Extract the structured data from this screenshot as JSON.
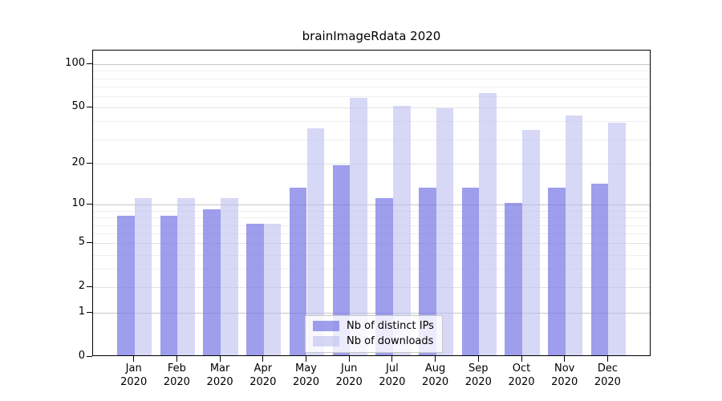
{
  "title": "brainImageRdata 2020",
  "colors": {
    "ips_bar": "rgba(120,120,230,0.72)",
    "downloads_bar": "rgba(190,190,240,0.62)",
    "grid_major": "#c6c6c6",
    "grid_minor": "#efefef",
    "axis": "#000000"
  },
  "legend": {
    "items": [
      {
        "label": "Nb of distinct IPs",
        "color": "rgba(120,120,230,0.72)"
      },
      {
        "label": "Nb of downloads",
        "color": "rgba(190,190,240,0.62)"
      }
    ]
  },
  "chart_data": {
    "type": "bar",
    "title": "brainImageRdata 2020",
    "categories": [
      "Jan 2020",
      "Feb 2020",
      "Mar 2020",
      "Apr 2020",
      "May 2020",
      "Jun 2020",
      "Jul 2020",
      "Aug 2020",
      "Sep 2020",
      "Oct 2020",
      "Nov 2020",
      "Dec 2020"
    ],
    "series": [
      {
        "name": "Nb of distinct IPs",
        "color": "rgba(120,120,230,0.72)",
        "values": [
          8,
          8,
          9,
          7,
          13,
          19,
          11,
          13,
          13,
          10,
          13,
          14
        ]
      },
      {
        "name": "Nb of downloads",
        "color": "rgba(190,190,240,0.62)",
        "values": [
          11,
          11,
          11,
          7,
          35,
          57,
          50,
          48,
          62,
          34,
          43,
          38
        ]
      }
    ],
    "xlabel": "",
    "ylabel": "",
    "y_scale": "log1p",
    "y_ticks": [
      0,
      1,
      2,
      5,
      10,
      20,
      50,
      100
    ],
    "y_minor_grid": [
      3,
      4,
      6,
      7,
      8,
      9,
      30,
      40,
      60,
      70,
      80,
      90
    ],
    "y_mid_grid": [
      2,
      5,
      20,
      50
    ],
    "ylim": [
      0,
      124
    ],
    "grid": "horizontal",
    "legend_position": "inside-bottom-center"
  }
}
